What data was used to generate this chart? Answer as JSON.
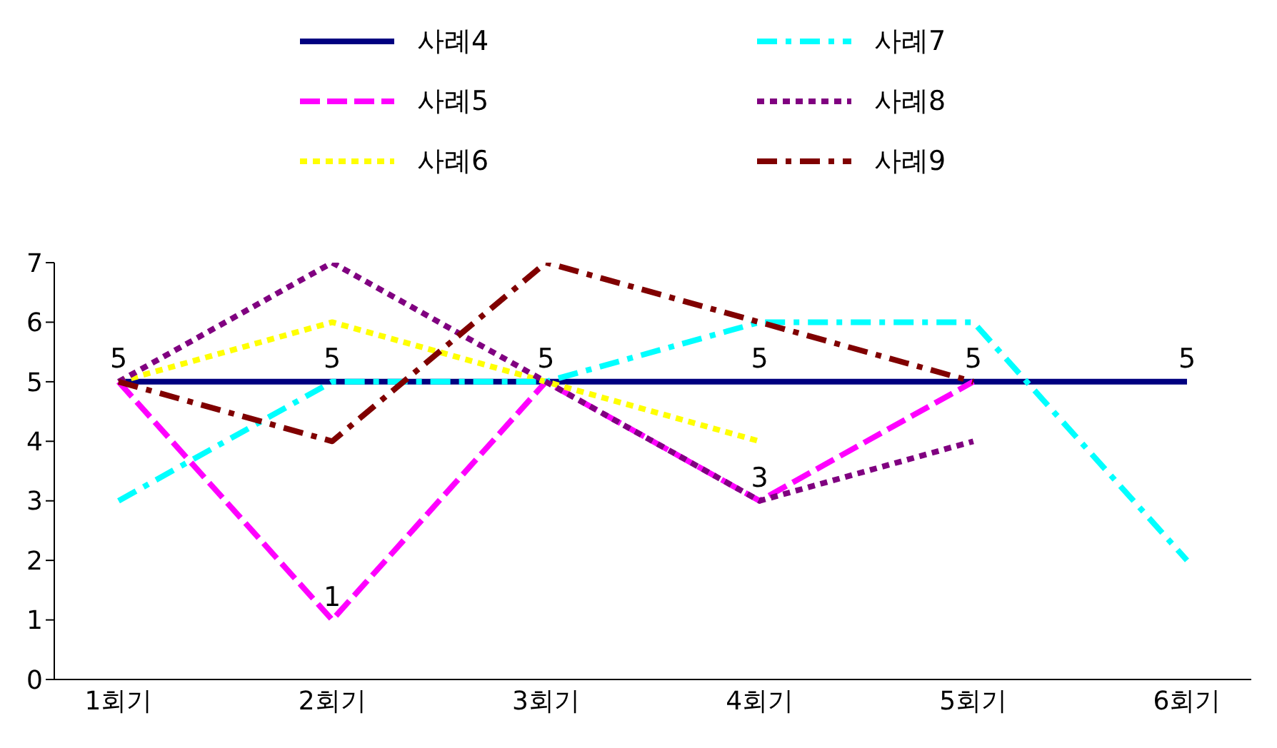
{
  "chart_data": {
    "type": "line",
    "categories": [
      "1회기",
      "2회기",
      "3회기",
      "4회기",
      "5회기",
      "6회기"
    ],
    "series": [
      {
        "name": "사례4",
        "color": "#000080",
        "line_style": "solid",
        "values": [
          5,
          5,
          5,
          5,
          5,
          5
        ],
        "value_labels": [
          "5",
          "5",
          "5",
          "5",
          "5",
          "5"
        ]
      },
      {
        "name": "사례5",
        "color": "#ff00ff",
        "line_style": "dashed",
        "values": [
          5,
          1,
          5,
          3,
          5,
          null
        ],
        "value_labels": [
          null,
          "1",
          null,
          "3",
          null,
          null
        ]
      },
      {
        "name": "사례6",
        "color": "#ffff00",
        "line_style": "dotted",
        "values": [
          5,
          6,
          5,
          4,
          null,
          null
        ]
      },
      {
        "name": "사례7",
        "color": "#00ffff",
        "line_style": "dashdot",
        "values": [
          3,
          5,
          5,
          6,
          6,
          2
        ]
      },
      {
        "name": "사례8",
        "color": "#800080",
        "line_style": "dotted",
        "values": [
          5,
          7,
          5,
          3,
          4,
          null
        ]
      },
      {
        "name": "사례9",
        "color": "#800000",
        "line_style": "dashdot",
        "values": [
          5,
          4,
          7,
          6,
          5,
          null
        ]
      }
    ],
    "ylim": [
      0,
      7
    ],
    "yticks": [
      0,
      1,
      2,
      3,
      4,
      5,
      6,
      7
    ],
    "grid": false,
    "legend": "top",
    "marker": "none"
  }
}
